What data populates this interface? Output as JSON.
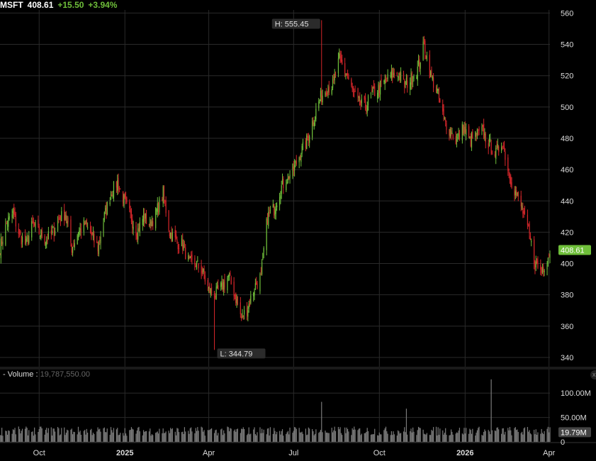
{
  "header": {
    "symbol": "MSFT",
    "price": "408.61",
    "change": "+15.50",
    "change_pct": "+3.94%"
  },
  "volume_panel": {
    "label": "- Volume :",
    "value": "19,787,550.00",
    "close_symbol": "x"
  },
  "colors": {
    "up": "#6fbf3a",
    "down": "#d4262a",
    "grid": "#2a2a2a",
    "volume": "#7a7a7a",
    "price_tag": "#6fbf3a"
  },
  "chart_data": [
    {
      "type": "candlestick",
      "price_axis_ticks": [
        "560",
        "540",
        "520",
        "500",
        "480",
        "460",
        "440",
        "420",
        "400",
        "380",
        "360",
        "340"
      ],
      "ylim": [
        335,
        562
      ],
      "x_tick_labels": [
        "Oct",
        "2025",
        "Apr",
        "Jul",
        "Oct",
        "2026",
        "Apr"
      ],
      "x_tick_dates": [
        "2024-10-01",
        "2025-01-01",
        "2025-04-01",
        "2025-07-01",
        "2025-10-01",
        "2026-01-01",
        "2026-04-01"
      ],
      "xlim": [
        "2024-08-20",
        "2026-04-02"
      ],
      "grid": true,
      "annotations": [
        {
          "text": "H: 555.45",
          "date": "2025-07-31",
          "value": 555.45
        },
        {
          "text": "L: 344.79",
          "date": "2025-04-07",
          "value": 344.79
        }
      ],
      "last_price_label": "408.61",
      "close_path": [
        [
          "2024-08-20",
          410
        ],
        [
          "2024-08-27",
          425
        ],
        [
          "2024-09-03",
          432
        ],
        [
          "2024-09-10",
          418
        ],
        [
          "2024-09-17",
          412
        ],
        [
          "2024-09-24",
          425
        ],
        [
          "2024-10-01",
          420
        ],
        [
          "2024-10-08",
          415
        ],
        [
          "2024-10-15",
          419
        ],
        [
          "2024-10-22",
          428
        ],
        [
          "2024-10-29",
          432
        ],
        [
          "2024-11-05",
          410
        ],
        [
          "2024-11-12",
          420
        ],
        [
          "2024-11-19",
          425
        ],
        [
          "2024-11-26",
          418
        ],
        [
          "2024-12-03",
          410
        ],
        [
          "2024-12-10",
          430
        ],
        [
          "2024-12-17",
          445
        ],
        [
          "2024-12-24",
          452
        ],
        [
          "2024-12-31",
          440
        ],
        [
          "2025-01-07",
          430
        ],
        [
          "2025-01-14",
          420
        ],
        [
          "2025-01-21",
          430
        ],
        [
          "2025-01-28",
          425
        ],
        [
          "2025-02-04",
          433
        ],
        [
          "2025-02-11",
          445
        ],
        [
          "2025-02-18",
          420
        ],
        [
          "2025-02-25",
          414
        ],
        [
          "2025-03-04",
          412
        ],
        [
          "2025-03-11",
          400
        ],
        [
          "2025-03-18",
          400
        ],
        [
          "2025-03-25",
          395
        ],
        [
          "2025-04-01",
          383
        ],
        [
          "2025-04-08",
          380
        ],
        [
          "2025-04-15",
          385
        ],
        [
          "2025-04-22",
          392
        ],
        [
          "2025-04-29",
          380
        ],
        [
          "2025-05-06",
          365
        ],
        [
          "2025-05-13",
          372
        ],
        [
          "2025-05-20",
          385
        ],
        [
          "2025-05-27",
          392
        ],
        [
          "2025-06-03",
          430
        ],
        [
          "2025-06-10",
          435
        ],
        [
          "2025-06-17",
          448
        ],
        [
          "2025-06-24",
          455
        ],
        [
          "2025-07-01",
          460
        ],
        [
          "2025-07-08",
          470
        ],
        [
          "2025-07-15",
          478
        ],
        [
          "2025-07-22",
          492
        ],
        [
          "2025-07-29",
          505
        ],
        [
          "2025-08-05",
          512
        ],
        [
          "2025-08-12",
          514
        ],
        [
          "2025-08-19",
          530
        ],
        [
          "2025-08-26",
          522
        ],
        [
          "2025-09-02",
          510
        ],
        [
          "2025-09-09",
          502
        ],
        [
          "2025-09-16",
          500
        ],
        [
          "2025-09-23",
          508
        ],
        [
          "2025-09-30",
          512
        ],
        [
          "2025-10-07",
          516
        ],
        [
          "2025-10-14",
          520
        ],
        [
          "2025-10-21",
          522
        ],
        [
          "2025-10-28",
          514
        ],
        [
          "2025-11-04",
          518
        ],
        [
          "2025-11-11",
          524
        ],
        [
          "2025-11-18",
          540
        ],
        [
          "2025-11-25",
          520
        ],
        [
          "2025-12-02",
          510
        ],
        [
          "2025-12-09",
          492
        ],
        [
          "2025-12-16",
          485
        ],
        [
          "2025-12-23",
          478
        ],
        [
          "2025-12-30",
          487
        ],
        [
          "2026-01-06",
          478
        ],
        [
          "2026-01-13",
          482
        ],
        [
          "2026-01-20",
          484
        ],
        [
          "2026-01-27",
          476
        ],
        [
          "2026-02-03",
          470
        ],
        [
          "2026-02-10",
          478
        ],
        [
          "2026-02-17",
          458
        ],
        [
          "2026-02-24",
          445
        ],
        [
          "2026-03-03",
          435
        ],
        [
          "2026-03-10",
          420
        ],
        [
          "2026-03-17",
          400
        ],
        [
          "2026-03-24",
          395
        ],
        [
          "2026-03-31",
          405
        ],
        [
          "2026-04-02",
          408.61
        ]
      ]
    },
    {
      "type": "bar",
      "series": "Volume",
      "y_axis_ticks": [
        "100.00M",
        "50.00M",
        "0"
      ],
      "ylim": [
        0,
        125000000
      ],
      "last_value_label": "19.79M",
      "typical_volume": 21000000,
      "spikes": [
        {
          "date": "2025-07-31",
          "value": 82000000
        },
        {
          "date": "2025-10-30",
          "value": 68000000
        },
        {
          "date": "2026-01-29",
          "value": 128000000
        }
      ]
    }
  ]
}
